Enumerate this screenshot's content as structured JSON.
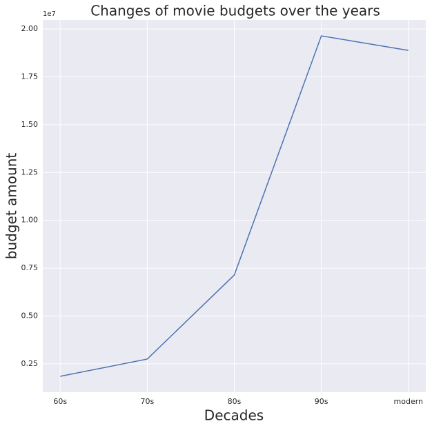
{
  "chart_data": {
    "type": "line",
    "title": "Changes of movie budgets over the years",
    "x_label": "Decades",
    "y_label": "budget amount",
    "y_offset_label": "1e7",
    "categories": [
      "60s",
      "70s",
      "80s",
      "90s",
      "modern"
    ],
    "series": [
      {
        "name": "budget",
        "color": "#4c72b0",
        "values": [
          0.185,
          0.275,
          0.714,
          1.964,
          1.888
        ]
      }
    ],
    "ylim": [
      0.102,
      2.047
    ],
    "yticks": [
      0.25,
      {
        "value": 0.5,
        "label": "0.50"
      },
      0.75,
      {
        "value": 1.0,
        "label": "1.00"
      },
      1.25,
      {
        "value": 1.5,
        "label": "1.50"
      },
      1.75,
      {
        "value": 2.0,
        "label": "2.00"
      }
    ],
    "grid": true
  }
}
